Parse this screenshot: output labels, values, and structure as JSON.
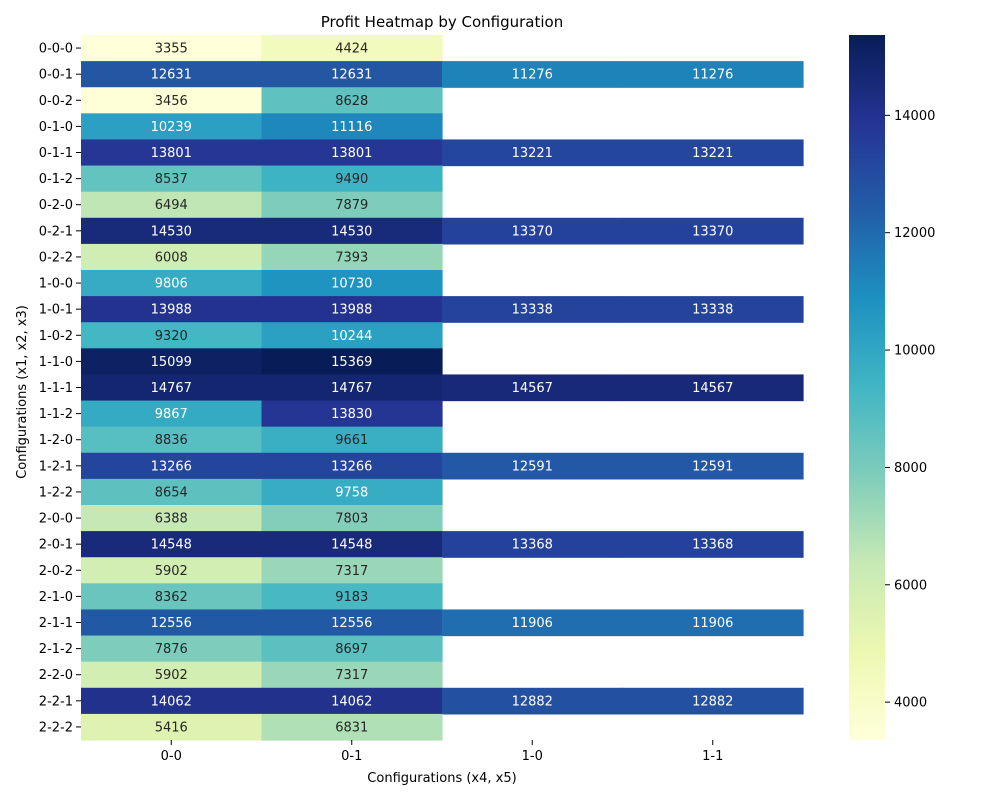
{
  "chart_data": {
    "type": "heatmap",
    "title": "Profit Heatmap by Configuration",
    "xlabel": "Configurations (x4, x5)",
    "ylabel": "Configurations (x1, x2, x3)",
    "x_categories": [
      "0-0",
      "0-1",
      "1-0",
      "1-1"
    ],
    "y_categories": [
      "0-0-0",
      "0-0-1",
      "0-0-2",
      "0-1-0",
      "0-1-1",
      "0-1-2",
      "0-2-0",
      "0-2-1",
      "0-2-2",
      "1-0-0",
      "1-0-1",
      "1-0-2",
      "1-1-0",
      "1-1-1",
      "1-1-2",
      "1-2-0",
      "1-2-1",
      "1-2-2",
      "2-0-0",
      "2-0-1",
      "2-0-2",
      "2-1-0",
      "2-1-1",
      "2-1-2",
      "2-2-0",
      "2-2-1",
      "2-2-2"
    ],
    "values": [
      [
        3355,
        4424,
        null,
        null
      ],
      [
        12631,
        12631,
        11276,
        11276
      ],
      [
        3456,
        8628,
        null,
        null
      ],
      [
        10239,
        11116,
        null,
        null
      ],
      [
        13801,
        13801,
        13221,
        13221
      ],
      [
        8537,
        9490,
        null,
        null
      ],
      [
        6494,
        7879,
        null,
        null
      ],
      [
        14530,
        14530,
        13370,
        13370
      ],
      [
        6008,
        7393,
        null,
        null
      ],
      [
        9806,
        10730,
        null,
        null
      ],
      [
        13988,
        13988,
        13338,
        13338
      ],
      [
        9320,
        10244,
        null,
        null
      ],
      [
        15099,
        15369,
        null,
        null
      ],
      [
        14767,
        14767,
        14567,
        14567
      ],
      [
        9867,
        13830,
        null,
        null
      ],
      [
        8836,
        9661,
        null,
        null
      ],
      [
        13266,
        13266,
        12591,
        12591
      ],
      [
        8654,
        9758,
        null,
        null
      ],
      [
        6388,
        7803,
        null,
        null
      ],
      [
        14548,
        14548,
        13368,
        13368
      ],
      [
        5902,
        7317,
        null,
        null
      ],
      [
        8362,
        9183,
        null,
        null
      ],
      [
        12556,
        12556,
        11906,
        11906
      ],
      [
        7876,
        8697,
        null,
        null
      ],
      [
        5902,
        7317,
        null,
        null
      ],
      [
        14062,
        14062,
        12882,
        12882
      ],
      [
        5416,
        6831,
        null,
        null
      ]
    ],
    "colormap": "YlGnBu",
    "vmin": 3355,
    "vmax": 15369,
    "colorbar": {
      "ticks": [
        4000,
        6000,
        8000,
        10000,
        12000,
        14000
      ],
      "tick_labels": [
        "4000",
        "6000",
        "8000",
        "10000",
        "12000",
        "14000"
      ]
    }
  }
}
